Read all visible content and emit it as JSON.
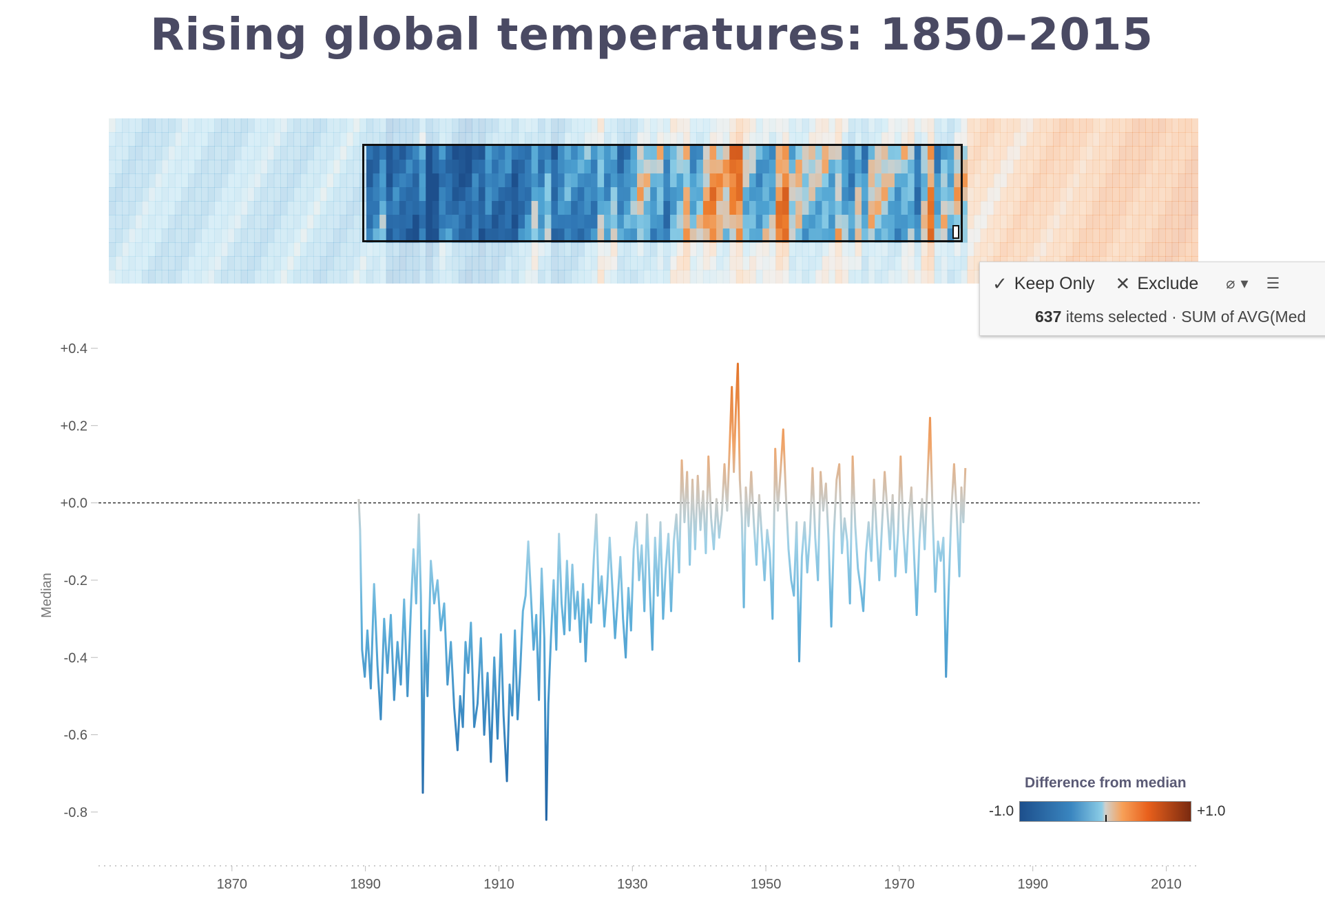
{
  "title": "Rising global temperatures: 1850–2015",
  "tooltip": {
    "keep_only": "Keep Only",
    "exclude": "Exclude",
    "count": "637",
    "selected_text": " items selected",
    "separator": " · ",
    "measure": "SUM of AVG(Med"
  },
  "legend": {
    "title": "Difference from median",
    "min_label": "-1.0",
    "max_label": "+1.0"
  },
  "chart_data": {
    "type": "line",
    "title": "Rising global temperatures: 1850–2015",
    "ylabel": "Median",
    "xlabel": "",
    "x_ticks": [
      "1870",
      "1890",
      "1910",
      "1930",
      "1950",
      "1970",
      "1990",
      "2010"
    ],
    "y_ticks": [
      "+0.4",
      "+0.2",
      "+0.0",
      "-0.2",
      "-0.4",
      "-0.6",
      "-0.8"
    ],
    "xlim": [
      1850,
      2015
    ],
    "ylim": [
      -0.9,
      0.45
    ],
    "reference_line": 0.0,
    "selection_range": [
      1889,
      1980
    ],
    "color_scale": {
      "min": -1.0,
      "max": 1.0,
      "low": "#1d4f8c",
      "mid": "#d0d0cc",
      "high": "#7a2a10"
    },
    "series": [
      {
        "points": [
          [
            1889.0,
            0.01
          ],
          [
            1889.2,
            -0.07
          ],
          [
            1889.5,
            -0.38
          ],
          [
            1889.9,
            -0.45
          ],
          [
            1890.3,
            -0.33
          ],
          [
            1890.8,
            -0.48
          ],
          [
            1891.3,
            -0.21
          ],
          [
            1891.8,
            -0.42
          ],
          [
            1892.3,
            -0.56
          ],
          [
            1892.8,
            -0.3
          ],
          [
            1893.3,
            -0.44
          ],
          [
            1893.8,
            -0.29
          ],
          [
            1894.3,
            -0.51
          ],
          [
            1894.8,
            -0.36
          ],
          [
            1895.3,
            -0.47
          ],
          [
            1895.8,
            -0.25
          ],
          [
            1896.3,
            -0.5
          ],
          [
            1896.8,
            -0.28
          ],
          [
            1897.2,
            -0.12
          ],
          [
            1897.6,
            -0.26
          ],
          [
            1898.0,
            -0.03
          ],
          [
            1898.3,
            -0.24
          ],
          [
            1898.6,
            -0.75
          ],
          [
            1898.9,
            -0.33
          ],
          [
            1899.3,
            -0.5
          ],
          [
            1899.8,
            -0.15
          ],
          [
            1900.3,
            -0.26
          ],
          [
            1900.8,
            -0.2
          ],
          [
            1901.3,
            -0.33
          ],
          [
            1901.8,
            -0.26
          ],
          [
            1902.3,
            -0.47
          ],
          [
            1902.8,
            -0.36
          ],
          [
            1903.3,
            -0.53
          ],
          [
            1903.8,
            -0.64
          ],
          [
            1904.2,
            -0.5
          ],
          [
            1904.6,
            -0.58
          ],
          [
            1905.0,
            -0.36
          ],
          [
            1905.4,
            -0.44
          ],
          [
            1905.8,
            -0.31
          ],
          [
            1906.3,
            -0.58
          ],
          [
            1906.8,
            -0.52
          ],
          [
            1907.3,
            -0.35
          ],
          [
            1907.8,
            -0.6
          ],
          [
            1908.3,
            -0.44
          ],
          [
            1908.8,
            -0.67
          ],
          [
            1909.3,
            -0.4
          ],
          [
            1909.8,
            -0.61
          ],
          [
            1910.3,
            -0.34
          ],
          [
            1910.7,
            -0.55
          ],
          [
            1911.2,
            -0.72
          ],
          [
            1911.6,
            -0.47
          ],
          [
            1912.0,
            -0.55
          ],
          [
            1912.4,
            -0.33
          ],
          [
            1912.8,
            -0.56
          ],
          [
            1913.2,
            -0.43
          ],
          [
            1913.6,
            -0.28
          ],
          [
            1914.0,
            -0.24
          ],
          [
            1914.4,
            -0.1
          ],
          [
            1914.8,
            -0.24
          ],
          [
            1915.2,
            -0.38
          ],
          [
            1915.6,
            -0.29
          ],
          [
            1916.0,
            -0.51
          ],
          [
            1916.4,
            -0.17
          ],
          [
            1916.8,
            -0.35
          ],
          [
            1917.1,
            -0.82
          ],
          [
            1917.4,
            -0.52
          ],
          [
            1917.8,
            -0.35
          ],
          [
            1918.2,
            -0.2
          ],
          [
            1918.6,
            -0.38
          ],
          [
            1919.0,
            -0.08
          ],
          [
            1919.4,
            -0.26
          ],
          [
            1919.8,
            -0.34
          ],
          [
            1920.2,
            -0.15
          ],
          [
            1920.6,
            -0.33
          ],
          [
            1921.0,
            -0.16
          ],
          [
            1921.4,
            -0.3
          ],
          [
            1921.8,
            -0.23
          ],
          [
            1922.2,
            -0.36
          ],
          [
            1922.6,
            -0.21
          ],
          [
            1923.0,
            -0.41
          ],
          [
            1923.4,
            -0.25
          ],
          [
            1923.8,
            -0.31
          ],
          [
            1924.2,
            -0.15
          ],
          [
            1924.6,
            -0.03
          ],
          [
            1925.0,
            -0.26
          ],
          [
            1925.4,
            -0.19
          ],
          [
            1925.8,
            -0.32
          ],
          [
            1926.2,
            -0.23
          ],
          [
            1926.6,
            -0.09
          ],
          [
            1927.0,
            -0.22
          ],
          [
            1927.4,
            -0.35
          ],
          [
            1927.8,
            -0.25
          ],
          [
            1928.2,
            -0.14
          ],
          [
            1928.6,
            -0.3
          ],
          [
            1929.0,
            -0.4
          ],
          [
            1929.4,
            -0.22
          ],
          [
            1929.8,
            -0.33
          ],
          [
            1930.2,
            -0.12
          ],
          [
            1930.6,
            -0.05
          ],
          [
            1931.0,
            -0.2
          ],
          [
            1931.4,
            -0.11
          ],
          [
            1931.8,
            -0.28
          ],
          [
            1932.2,
            -0.03
          ],
          [
            1932.6,
            -0.22
          ],
          [
            1933.0,
            -0.38
          ],
          [
            1933.4,
            -0.09
          ],
          [
            1933.8,
            -0.24
          ],
          [
            1934.2,
            -0.05
          ],
          [
            1934.6,
            -0.3
          ],
          [
            1935.0,
            -0.17
          ],
          [
            1935.4,
            -0.08
          ],
          [
            1935.8,
            -0.28
          ],
          [
            1936.2,
            -0.1
          ],
          [
            1936.6,
            -0.03
          ],
          [
            1937.0,
            -0.18
          ],
          [
            1937.4,
            0.11
          ],
          [
            1937.8,
            -0.05
          ],
          [
            1938.2,
            0.08
          ],
          [
            1938.6,
            -0.16
          ],
          [
            1939.0,
            0.06
          ],
          [
            1939.4,
            -0.12
          ],
          [
            1939.8,
            0.07
          ],
          [
            1940.2,
            -0.07
          ],
          [
            1940.6,
            0.03
          ],
          [
            1941.0,
            -0.13
          ],
          [
            1941.4,
            0.12
          ],
          [
            1941.8,
            -0.04
          ],
          [
            1942.2,
            -0.12
          ],
          [
            1942.6,
            0.01
          ],
          [
            1943.0,
            -0.09
          ],
          [
            1943.4,
            -0.03
          ],
          [
            1943.8,
            0.1
          ],
          [
            1944.2,
            -0.02
          ],
          [
            1944.6,
            0.16
          ],
          [
            1944.9,
            0.3
          ],
          [
            1945.2,
            0.08
          ],
          [
            1945.5,
            0.24
          ],
          [
            1945.8,
            0.36
          ],
          [
            1946.1,
            0.06
          ],
          [
            1946.4,
            -0.04
          ],
          [
            1946.7,
            -0.27
          ],
          [
            1947.0,
            0.04
          ],
          [
            1947.4,
            -0.06
          ],
          [
            1947.8,
            0.08
          ],
          [
            1948.2,
            -0.05
          ],
          [
            1948.6,
            -0.16
          ],
          [
            1949.0,
            0.02
          ],
          [
            1949.4,
            -0.09
          ],
          [
            1949.8,
            -0.2
          ],
          [
            1950.2,
            -0.07
          ],
          [
            1950.6,
            -0.13
          ],
          [
            1951.0,
            -0.3
          ],
          [
            1951.4,
            0.14
          ],
          [
            1951.8,
            -0.02
          ],
          [
            1952.2,
            0.08
          ],
          [
            1952.6,
            0.19
          ],
          [
            1953.0,
            0.02
          ],
          [
            1953.4,
            -0.12
          ],
          [
            1953.8,
            -0.2
          ],
          [
            1954.2,
            -0.24
          ],
          [
            1954.6,
            -0.05
          ],
          [
            1955.0,
            -0.41
          ],
          [
            1955.4,
            -0.14
          ],
          [
            1955.8,
            -0.05
          ],
          [
            1956.2,
            -0.18
          ],
          [
            1956.6,
            -0.08
          ],
          [
            1957.0,
            0.09
          ],
          [
            1957.4,
            -0.09
          ],
          [
            1957.8,
            -0.2
          ],
          [
            1958.2,
            0.08
          ],
          [
            1958.6,
            -0.02
          ],
          [
            1959.0,
            0.05
          ],
          [
            1959.4,
            -0.1
          ],
          [
            1959.8,
            -0.32
          ],
          [
            1960.2,
            -0.08
          ],
          [
            1960.6,
            0.06
          ],
          [
            1961.0,
            0.1
          ],
          [
            1961.4,
            -0.13
          ],
          [
            1961.8,
            -0.04
          ],
          [
            1962.2,
            -0.1
          ],
          [
            1962.6,
            -0.26
          ],
          [
            1963.0,
            0.12
          ],
          [
            1963.4,
            -0.06
          ],
          [
            1963.8,
            -0.17
          ],
          [
            1964.2,
            -0.22
          ],
          [
            1964.6,
            -0.28
          ],
          [
            1965.0,
            -0.13
          ],
          [
            1965.4,
            -0.05
          ],
          [
            1965.8,
            -0.15
          ],
          [
            1966.2,
            0.06
          ],
          [
            1966.6,
            -0.08
          ],
          [
            1967.0,
            -0.2
          ],
          [
            1967.4,
            -0.06
          ],
          [
            1967.8,
            0.08
          ],
          [
            1968.2,
            -0.02
          ],
          [
            1968.6,
            -0.12
          ],
          [
            1969.0,
            0.02
          ],
          [
            1969.4,
            -0.19
          ],
          [
            1969.8,
            -0.08
          ],
          [
            1970.2,
            0.12
          ],
          [
            1970.6,
            -0.07
          ],
          [
            1971.0,
            -0.18
          ],
          [
            1971.4,
            -0.04
          ],
          [
            1971.8,
            0.04
          ],
          [
            1972.2,
            -0.13
          ],
          [
            1972.6,
            -0.29
          ],
          [
            1973.0,
            -0.1
          ],
          [
            1973.4,
            0.01
          ],
          [
            1973.8,
            -0.12
          ],
          [
            1974.2,
            0.05
          ],
          [
            1974.6,
            0.22
          ],
          [
            1975.0,
            -0.04
          ],
          [
            1975.4,
            -0.23
          ],
          [
            1975.8,
            -0.1
          ],
          [
            1976.2,
            -0.15
          ],
          [
            1976.6,
            -0.09
          ],
          [
            1977.0,
            -0.45
          ],
          [
            1977.4,
            -0.22
          ],
          [
            1977.8,
            -0.02
          ],
          [
            1978.2,
            0.1
          ],
          [
            1978.6,
            -0.03
          ],
          [
            1979.0,
            -0.19
          ],
          [
            1979.3,
            0.04
          ],
          [
            1979.6,
            -0.05
          ],
          [
            1979.9,
            0.09
          ]
        ]
      }
    ]
  }
}
